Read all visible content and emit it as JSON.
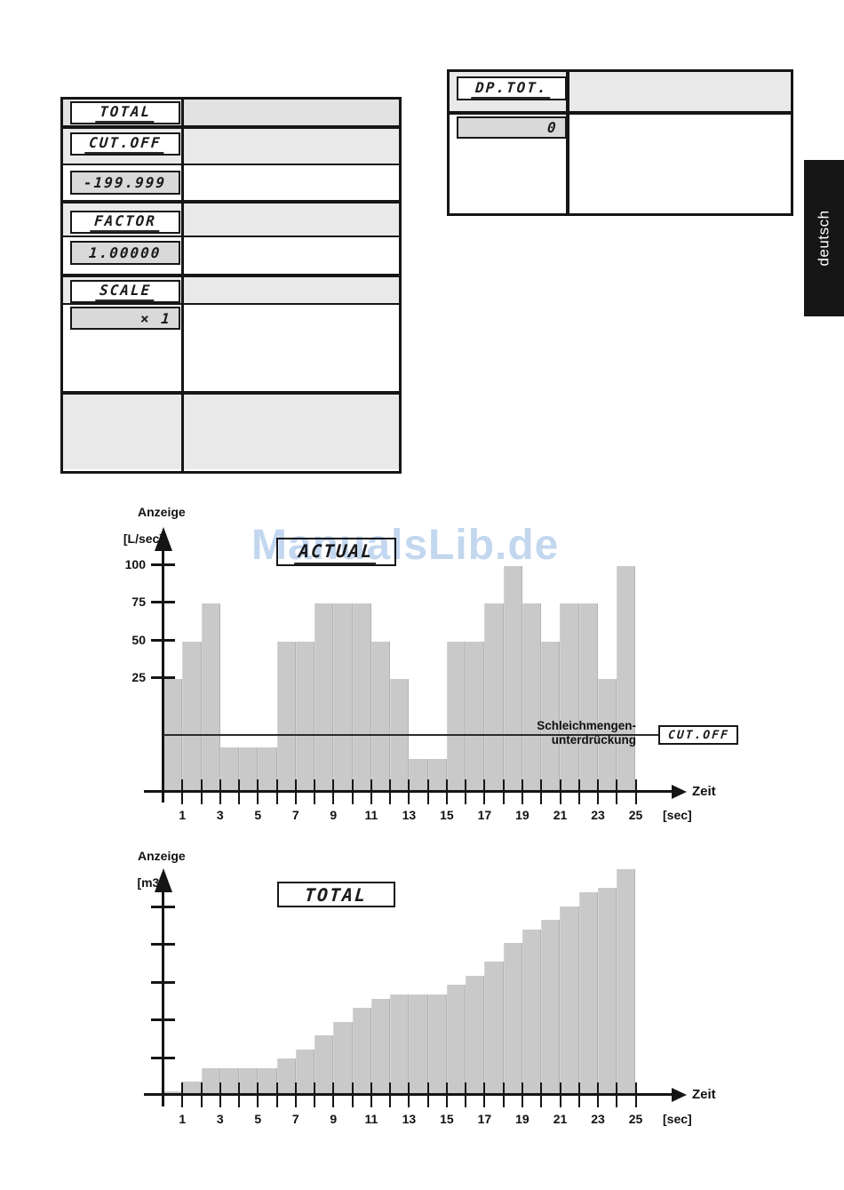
{
  "language_tab": {
    "label": "deutsch"
  },
  "settings_table": {
    "rows": [
      {
        "kind": "label",
        "display": "TOTAL"
      },
      {
        "kind": "label",
        "display": "CUT.OFF"
      },
      {
        "kind": "value",
        "display": "-199.999"
      },
      {
        "kind": "label",
        "display": "FACTOR"
      },
      {
        "kind": "value",
        "display": "1.00000"
      },
      {
        "kind": "label",
        "display": "SCALE"
      },
      {
        "kind": "value",
        "display": "× 1"
      },
      {
        "kind": "empty",
        "display": ""
      }
    ]
  },
  "dp_total_table": {
    "label_display": "DP.TOT.",
    "value_display": "0"
  },
  "watermark": {
    "text": "ManualsLib.de",
    "color": "#c3d7ef"
  },
  "chart_data": [
    {
      "type": "bar",
      "title_display": "ACTUAL",
      "ylabel": "Anzeige",
      "y_unit": "[L/sec]",
      "xlabel": "Zeit",
      "x_unit": "[sec]",
      "yticks": [
        100,
        75,
        50,
        25
      ],
      "xtick_labels": [
        1,
        3,
        5,
        7,
        9,
        11,
        13,
        15,
        17,
        19,
        21,
        23,
        25
      ],
      "x_range_sec": [
        0,
        25
      ],
      "grid": false,
      "legend_position": "none",
      "values_l_per_sec": [
        25,
        50,
        75,
        10,
        10,
        10,
        50,
        50,
        75,
        75,
        75,
        50,
        25,
        7,
        7,
        50,
        50,
        75,
        100,
        75,
        50,
        75,
        75,
        25,
        100
      ],
      "cutoff": {
        "line1": "Schleichmengen-",
        "line2": "unterdrückung",
        "display": "CUT.OFF"
      }
    },
    {
      "type": "bar",
      "title_display": "TOTAL",
      "ylabel": "Anzeige",
      "y_unit": "[m3]",
      "xlabel": "Zeit",
      "x_unit": "[sec]",
      "yticks_count": 5,
      "xtick_labels": [
        1,
        3,
        5,
        7,
        9,
        11,
        13,
        15,
        17,
        19,
        21,
        23,
        25
      ],
      "x_range_sec": [
        0,
        25
      ],
      "ylim": [
        0,
        1250
      ],
      "grid": false,
      "legend_position": "none",
      "values_cumulative": [
        25,
        75,
        150,
        150,
        150,
        150,
        200,
        250,
        325,
        400,
        475,
        525,
        550,
        550,
        550,
        600,
        650,
        725,
        825,
        900,
        950,
        1025,
        1100,
        1125,
        1225
      ]
    }
  ]
}
